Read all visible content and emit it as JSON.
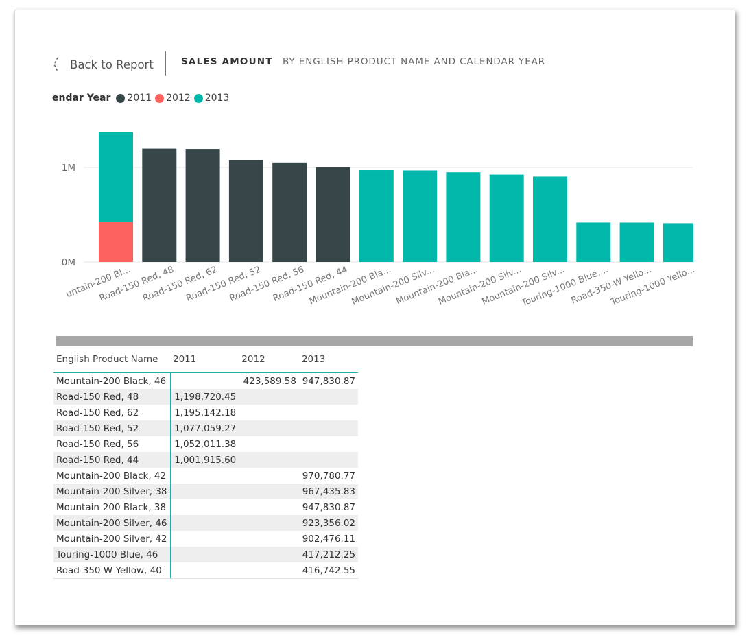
{
  "header": {
    "back_label": "Back to Report",
    "title": "SALES AMOUNT",
    "subtitle": "BY ENGLISH PRODUCT NAME AND CALENDAR YEAR"
  },
  "legend": {
    "title": "endar Year",
    "items": [
      {
        "label": "2011",
        "color": "#374649"
      },
      {
        "label": "2012",
        "color": "#fd625e"
      },
      {
        "label": "2013",
        "color": "#01b8aa"
      }
    ]
  },
  "chart_data": {
    "type": "bar",
    "stacked": true,
    "categories": [
      "untain-200 Bl...",
      "Road-150 Red, 48",
      "Road-150 Red, 62",
      "Road-150 Red, 52",
      "Road-150 Red, 56",
      "Road-150 Red, 44",
      "Mountain-200 Bla...",
      "Mountain-200 Silv...",
      "Mountain-200 Bla...",
      "Mountain-200 Silv...",
      "Mountain-200 Silv...",
      "Touring-1000 Blue,...",
      "Road-350-W Yello...",
      "Touring-1000 Yello..."
    ],
    "series": [
      {
        "name": "2011",
        "color": "#374649",
        "values": [
          0,
          1198720.45,
          1195142.18,
          1077059.27,
          1052011.38,
          1001915.6,
          0,
          0,
          0,
          0,
          0,
          0,
          0,
          0
        ]
      },
      {
        "name": "2012",
        "color": "#fd625e",
        "values": [
          423589.58,
          0,
          0,
          0,
          0,
          0,
          0,
          0,
          0,
          0,
          0,
          0,
          0,
          0
        ]
      },
      {
        "name": "2013",
        "color": "#01b8aa",
        "values": [
          947830.87,
          0,
          0,
          0,
          0,
          0,
          970780.77,
          967435.83,
          947830.87,
          923356.02,
          902476.11,
          417212.25,
          416742.55,
          410000
        ]
      }
    ],
    "ylim": [
      0,
      1400000
    ],
    "yticks": [
      {
        "value": 0,
        "label": "0M"
      },
      {
        "value": 1000000,
        "label": "1M"
      }
    ],
    "grid": true,
    "legend": "top-left"
  },
  "table": {
    "headers": [
      "English Product Name",
      "2011",
      "2012",
      "2013"
    ],
    "rows": [
      [
        "Mountain-200 Black, 46",
        "",
        "423,589.58",
        "947,830.87"
      ],
      [
        "Road-150 Red, 48",
        "1,198,720.45",
        "",
        ""
      ],
      [
        "Road-150 Red, 62",
        "1,195,142.18",
        "",
        ""
      ],
      [
        "Road-150 Red, 52",
        "1,077,059.27",
        "",
        ""
      ],
      [
        "Road-150 Red, 56",
        "1,052,011.38",
        "",
        ""
      ],
      [
        "Road-150 Red, 44",
        "1,001,915.60",
        "",
        ""
      ],
      [
        "Mountain-200 Black, 42",
        "",
        "",
        "970,780.77"
      ],
      [
        "Mountain-200 Silver, 38",
        "",
        "",
        "967,435.83"
      ],
      [
        "Mountain-200 Black, 38",
        "",
        "",
        "947,830.87"
      ],
      [
        "Mountain-200 Silver, 46",
        "",
        "",
        "923,356.02"
      ],
      [
        "Mountain-200 Silver, 42",
        "",
        "",
        "902,476.11"
      ],
      [
        "Touring-1000 Blue, 46",
        "",
        "",
        "417,212.25"
      ],
      [
        "Road-350-W Yellow, 40",
        "",
        "",
        "416,742.55"
      ]
    ]
  }
}
